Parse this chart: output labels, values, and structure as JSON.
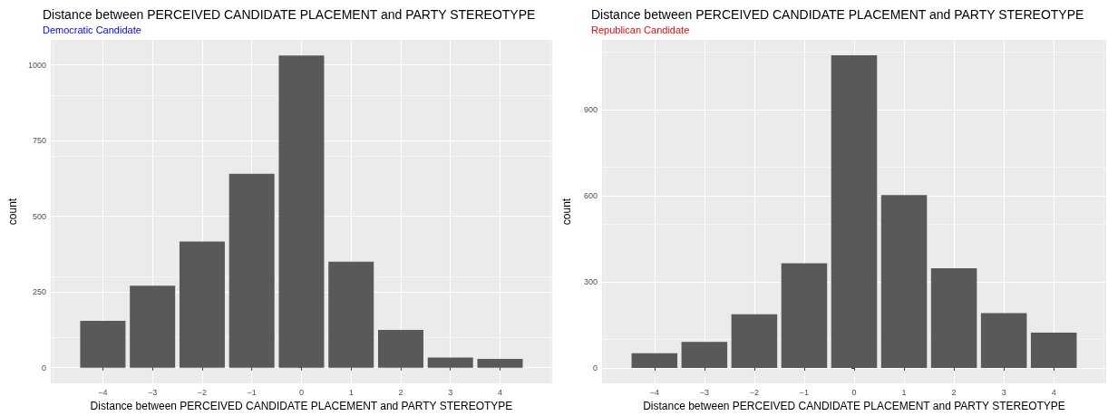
{
  "chart_data": [
    {
      "type": "bar",
      "title": "Distance between PERCEIVED CANDIDATE PLACEMENT and PARTY STEREOTYPE",
      "subtitle": "Democratic Candidate",
      "xlabel": "Distance between PERCEIVED CANDIDATE PLACEMENT and PARTY STEREOTYPE",
      "ylabel": "count",
      "x": [
        -4,
        -3,
        -2,
        -1,
        0,
        1,
        2,
        3,
        4
      ],
      "series": [
        {
          "color": "#595959",
          "values": [
            155,
            271,
            417,
            641,
            1031,
            350,
            125,
            34,
            29
          ]
        }
      ],
      "xlim": [
        -5.05,
        5.05
      ],
      "xticks": [
        {
          "value": -4,
          "label": "−4"
        },
        {
          "value": -3,
          "label": "−3"
        },
        {
          "value": -2,
          "label": "−2"
        },
        {
          "value": -1,
          "label": "−1"
        },
        0,
        1,
        2,
        3,
        4
      ],
      "ylim": [
        -52,
        1083
      ],
      "yticks": [
        0,
        250,
        500,
        750,
        1000
      ],
      "grid": true
    },
    {
      "type": "bar",
      "title": "Distance between PERCEIVED CANDIDATE PLACEMENT and PARTY STEREOTYPE",
      "subtitle": "Republican Candidate",
      "xlabel": "Distance between PERCEIVED CANDIDATE PLACEMENT and PARTY STEREOTYPE",
      "ylabel": "count",
      "x": [
        -4,
        -3,
        -2,
        -1,
        0,
        1,
        2,
        3,
        4
      ],
      "series": [
        {
          "color": "#595959",
          "values": [
            51,
            91,
            187,
            365,
            1089,
            602,
            347,
            191,
            123
          ]
        }
      ],
      "xlim": [
        -5.05,
        5.05
      ],
      "xticks": [
        {
          "value": -4,
          "label": "−4"
        },
        {
          "value": -3,
          "label": "−3"
        },
        {
          "value": -2,
          "label": "−2"
        },
        {
          "value": -1,
          "label": "−1"
        },
        0,
        1,
        2,
        3,
        4
      ],
      "ylim": [
        -54,
        1143
      ],
      "yticks": [
        0,
        300,
        600,
        900
      ],
      "grid": true
    }
  ]
}
